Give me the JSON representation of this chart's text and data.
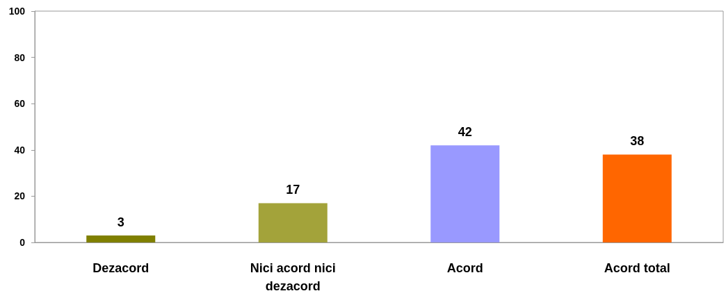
{
  "chart_data": {
    "type": "bar",
    "categories": [
      "Dezacord",
      "Nici acord nici\ndezacord",
      "Acord",
      "Acord total"
    ],
    "values": [
      3,
      17,
      42,
      38
    ],
    "colors": [
      "#808000",
      "#a3a33a",
      "#9999ff",
      "#ff6600"
    ],
    "ylim": [
      0,
      100
    ],
    "yticks": [
      0,
      20,
      40,
      60,
      80,
      100
    ],
    "grid": false,
    "data_labels": true
  }
}
